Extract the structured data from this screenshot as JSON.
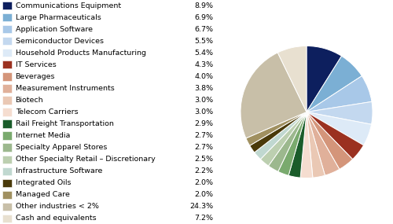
{
  "chart_data": {
    "type": "pie",
    "categories": [
      "Communications Equipment",
      "Large Pharmaceuticals",
      "Application Software",
      "Semiconductor Devices",
      "Household Products Manufacturing",
      "IT Services",
      "Beverages",
      "Measurement Instruments",
      "Biotech",
      "Telecom Carriers",
      "Rail Freight Transportation",
      "Internet Media",
      "Specialty Apparel Stores",
      "Other Specialty Retail – Discretionary",
      "Infrastructure Software",
      "Integrated Oils",
      "Managed Care",
      "Other industries < 2%",
      "Cash and equivalents"
    ],
    "values": [
      8.9,
      6.9,
      6.7,
      5.5,
      5.4,
      4.3,
      4.0,
      3.8,
      3.0,
      3.0,
      2.9,
      2.7,
      2.7,
      2.5,
      2.2,
      2.0,
      2.0,
      24.3,
      7.2
    ],
    "value_labels": [
      "8.9%",
      "6.9%",
      "6.7%",
      "5.5%",
      "5.4%",
      "4.3%",
      "4.0%",
      "3.8%",
      "3.0%",
      "3.0%",
      "2.9%",
      "2.7%",
      "2.7%",
      "2.5%",
      "2.2%",
      "2.0%",
      "2.0%",
      "24.3%",
      "7.2%"
    ],
    "colors": [
      "#0d1f5e",
      "#7bafd4",
      "#a8c8e8",
      "#c3d8ef",
      "#ddeaf7",
      "#9b3120",
      "#d4957a",
      "#e0b09a",
      "#eac8b4",
      "#f5ddd0",
      "#1a5c2a",
      "#7aaa6e",
      "#9cb88e",
      "#bccfb0",
      "#c0d8d0",
      "#4a3a0a",
      "#a09060",
      "#c8bfa8",
      "#e8e0d0"
    ]
  }
}
